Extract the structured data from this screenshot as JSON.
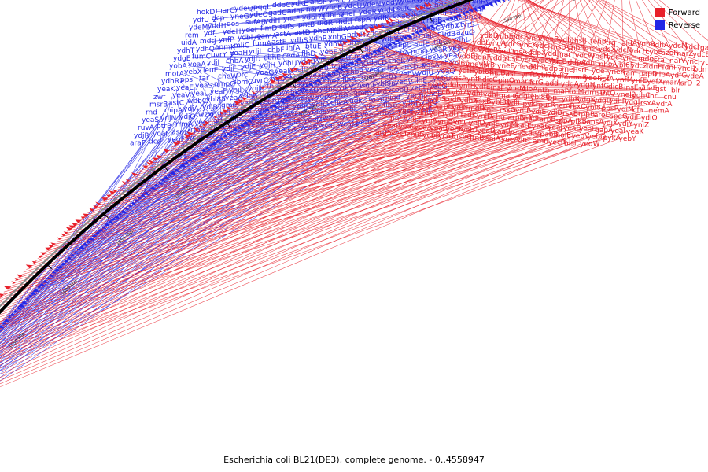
{
  "title": "Escherichia coli BL21(DE3), complete genome. - 0..4558947",
  "colors": {
    "forward": "#e8202a",
    "reverse": "#2326e6",
    "backbone": "#000000"
  },
  "legend": [
    {
      "label": "Forward",
      "color": "#e8202a"
    },
    {
      "label": "Reverse",
      "color": "#2326e6"
    }
  ],
  "ticks": [
    "1450 kbp",
    "1500 kbp",
    "1550 kbp",
    "1600 kbp",
    "1650 kbp",
    "1700 kbp",
    "1750 kbp",
    "1800 kbp",
    "1850 kbp",
    "1900 kbp",
    "1950 kbp",
    "2000 kbp",
    "2050 kbp"
  ],
  "reverse_labels": [
    "hokD",
    "marC",
    "ydeQ",
    "pqqL",
    "ddpC",
    "ydkE",
    "ansP",
    "yncL",
    "ydcO",
    "ydfU_1",
    "sad",
    "ydeP",
    "gadB",
    "maeA",
    "narU",
    "ycnD",
    "ydfU_2",
    "dcp",
    "yneG",
    "ydeO",
    "gadC",
    "adhP",
    "narW",
    "yncB",
    "ydeU",
    "ydeN",
    "yddW",
    "yddG",
    "ynj73",
    "ydeS",
    "yneH",
    "yneL",
    "ydeM",
    "yddH",
    "dos",
    "sufAB",
    "ydiH",
    "yncF",
    "ydbl71",
    "ydbl67",
    "yneF",
    "ydeR",
    "ydd4",
    "sufC",
    "sufD",
    "hdhA",
    "pntA",
    "ynfA",
    "rem",
    "ydfJ",
    "ydeH",
    "ydeI",
    "flmD",
    "sufS",
    "pntB",
    "uidR",
    "mdtl",
    "rspA",
    "ydfK",
    "uxaB",
    "infC",
    "rpmI",
    "ydhZ",
    "ydhF",
    "uidA",
    "mdtJ",
    "ynfP",
    "ydbl72",
    "eamA",
    "astA",
    "astD",
    "pheM",
    "ydhV",
    "sodC",
    "slyA",
    "uidC",
    "dgsA",
    "rspB",
    "astB",
    "pheT",
    "ydhT",
    "ydhQ",
    "anmK",
    "mliC",
    "fumA",
    "astE",
    "ydhS",
    "ydhR",
    "ynhG",
    "pdxH",
    "ydgC",
    "yncL",
    "chbB",
    "chbC",
    "ydhX",
    "tyrS",
    "ydgE",
    "fumC",
    "uvrY_2",
    "yoaH",
    "ydjL",
    "chbF",
    "ihfA",
    "btuE",
    "ydhW",
    "ydhY",
    "ynhF",
    "ydhW2",
    "ydhP",
    "malI",
    "nudB",
    "azuC",
    "yobA",
    "yoaA",
    "ydjI",
    "chbA",
    "ydjD",
    "cbhE",
    "cedA",
    "flhD",
    "yebE",
    "yeaZ",
    "ydjJ",
    "ydjG",
    "nlpC",
    "sufE",
    "ribC",
    "ydhL",
    "motA",
    "yebX",
    "leuE",
    "ydjF",
    "ydjE",
    "ydjH",
    "ydhU",
    "ydgB",
    "ydbK",
    "ydiU",
    "motB",
    "yebC",
    "znuA",
    "proQ",
    "yeaR_2",
    "ydjK",
    "ydhR2",
    "pps",
    "tar",
    "cheW",
    "prc",
    "yoaG",
    "yeaM",
    "selD",
    "topB",
    "tapB",
    "ydhO",
    "dacD",
    "cheR",
    "yebA",
    "ipxM",
    "yeaC",
    "yeaK",
    "yeaE",
    "yoaS",
    "nmpC",
    "sbmC",
    "uvrC",
    "htpX",
    "kdgR",
    "yeaP",
    "ydhV2",
    "chbR",
    "yeeD",
    "rfbA",
    "insD-3",
    "pgsA",
    "cheY",
    "zwf",
    "yeaV",
    "yeaL",
    "yeaF",
    "ynjI",
    "ynjH",
    "thrS",
    "ybl97",
    "yeeX",
    "cheZ",
    "flhA",
    "ruvC",
    "yebY",
    "yebW",
    "ydjU",
    "yeaQ",
    "msrB",
    "astC",
    "wbbC",
    "ybl85",
    "yeaA",
    "flhB",
    "yebO",
    "yebT",
    "yeaU",
    "ydhD",
    "ydjV",
    "osmE",
    "ybl96",
    "yedV",
    "flhE",
    "yebU",
    "rnd",
    "mipA",
    "ydjA",
    "ydjB",
    "gmd",
    "yedT",
    "yebP",
    "mgrB",
    "ydjW",
    "ydjX",
    "ydjY",
    "gmm",
    "ybl87",
    "cobU",
    "yebF",
    "yebG",
    "yeaS",
    "ydjN",
    "ydjO",
    "wzxC",
    "gnd",
    "otsB",
    "torY",
    "ydjP",
    "ydhC",
    "ydhA",
    "cheA",
    "udk",
    "wcaU",
    "ugd",
    "yecH",
    "cheB",
    "ruvA",
    "ptrB",
    "rrmA",
    "yeeL_1",
    "otsA",
    "flhC",
    "yeaT",
    "yeaW",
    "wcaC",
    "ybl95",
    "yeeA",
    "cbl",
    "yecJ",
    "flhG",
    "ydhB",
    "ydjQ",
    "ydjR",
    "yoaI",
    "asmA",
    "rfbB",
    "yeeK",
    "nac",
    "yecP",
    "rsmF",
    "ppiA",
    "yeeM",
    "wzc",
    "yeeE",
    "yeeG",
    "rfbC",
    "yeeI",
    "yedL",
    "araF",
    "dcd",
    "yegF",
    "wcaI",
    "wzy",
    "yeeC",
    "yeeB",
    "yeeO",
    "alkA",
    "yegR",
    "wcaJ",
    "wcaM",
    "yedN"
  ],
  "forward_labels": [
    "ydbD",
    "ynbE",
    "ydcF",
    "ynbA",
    "feaB",
    "ydbJ",
    "hslJ",
    "tehB",
    "trg",
    "aldA",
    "ynbB",
    "ldhA",
    "ydcM",
    "ydcI",
    "gapC",
    "ynbC",
    "ydbL",
    "yncA",
    "ydcS",
    "yncK",
    "ydcJ",
    "insB-5",
    "ynbD",
    "yncG",
    "ydcX",
    "ydcN",
    "ydcH",
    "cybB",
    "azoR",
    "narZ",
    "ydcD",
    "yncE",
    "ydcV",
    "ydcP",
    "rimL",
    "insA-5",
    "ddpX",
    "yddJ",
    "narY",
    "ydcW",
    "yncH",
    "ydcY",
    "yncI",
    "mdoD",
    "sra",
    "narV",
    "yncJ",
    "ydcK",
    "yddB",
    "ddpF",
    "yddL",
    "rhsE",
    "ycnB",
    "ydcW2",
    "hicB",
    "ddpA",
    "fdnG",
    "nhoA",
    "ybl65",
    "ydcZ",
    "fdnH",
    "fdnI",
    "yncI2",
    "bdm",
    "ybl66",
    "ynevN",
    "lsrB",
    "yneE",
    "ynevM",
    "osmC",
    "ddpD",
    "yneJ",
    "lsrF",
    "ydeT",
    "yneK",
    "tam",
    "papD",
    "hipA",
    "ydfG",
    "ydeA",
    "ybl77",
    "ydfH",
    "ybl68",
    "hipB",
    "asr",
    "ynfD",
    "ybl78",
    "ydfZ",
    "marR",
    "ydeK_2",
    "rstA",
    "ynfM",
    "ynfE",
    "ydfX",
    "marA",
    "lsrD_2",
    "tus",
    "tqsA",
    "ynfF",
    "dicC",
    "pinQ",
    "marB",
    "lsrG",
    "add",
    "ydgA",
    "ydgH",
    "ynfG",
    "dicB",
    "insE-3",
    "ydeE",
    "gst",
    "blr",
    "malX",
    "ydgI",
    "ynfH",
    "ydfE",
    "insF-3",
    "yneM",
    "gloA",
    "nth",
    "malY",
    "folM",
    "dmsD",
    "intQ",
    "yneJ2",
    "ydhC",
    "lhr",
    "cnu",
    "rstB",
    "clcB",
    "ybl75",
    "ydhJ",
    "ydhI",
    "manA",
    "ydgU",
    "ybl80",
    "lpp",
    "ydhK",
    "ydgK",
    "ydgD",
    "ydhR",
    "ydgJ",
    "rsxA",
    "ydfA",
    "ydiK",
    "ydhS",
    "sodB",
    "ydhX",
    "rsxB",
    "ybl81",
    "ydiL",
    "pykF",
    "purR",
    "nemR",
    "rsxC",
    "ybl82",
    "ppsR",
    "ydiM",
    "cfa",
    "nemA",
    "rsxD",
    "ydfD",
    "aroH",
    "ydiN",
    "mdtK",
    "rnt",
    "rsxG",
    "ynfB",
    "ydiE",
    "ydiB",
    "rsxE",
    "tppB",
    "aroD",
    "speG",
    "ydiF",
    "ydiO",
    "ydiQ",
    "ydiR",
    "ydiS",
    "ydiT",
    "fadK",
    "yniD",
    "cho",
    "arpB_1",
    "nadE",
    "arpB_2",
    "sppA",
    "pfkB",
    "ansA",
    "ydjX",
    "ydjY",
    "yniZ",
    "pncA",
    "ydjZ",
    "ynjA",
    "ynjB",
    "ynjC",
    "ynjD",
    "ynjE",
    "ydjM",
    "katE",
    "yeaG",
    "yeaJ",
    "yeaD",
    "yeaH",
    "gapA",
    "yeaI",
    "yeaK",
    "yeaL",
    "yeaC",
    "yeaA",
    "yeaB",
    "yebK",
    "yebT",
    "yoaD",
    "yoaB",
    "yebS",
    "sdaA",
    "pabB",
    "holE",
    "yebV",
    "yebQ",
    "pykA",
    "yebY",
    "argS",
    "yecT",
    "znuC",
    "yebB",
    "ycoT",
    "uspC",
    "ftnB",
    "shiA",
    "yoeA",
    "zinT",
    "amn",
    "yecR",
    "hisF",
    "yedW"
  ]
}
